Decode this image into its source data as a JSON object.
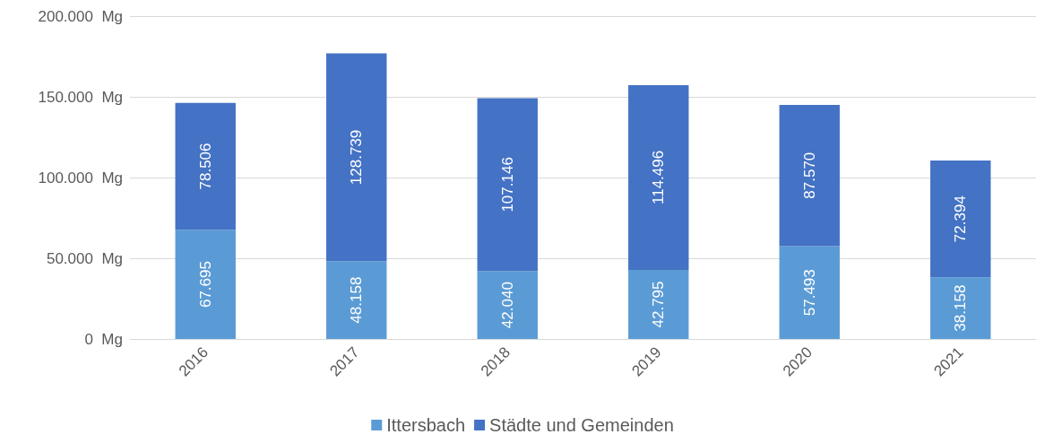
{
  "chart_data": {
    "type": "bar",
    "stacked": true,
    "categories": [
      "2016",
      "2017",
      "2018",
      "2019",
      "2020",
      "2021"
    ],
    "series": [
      {
        "name": "Ittersbach",
        "color": "#5b9bd5",
        "values": [
          67695,
          48158,
          42040,
          42795,
          57493,
          38158
        ],
        "value_labels": [
          "67.695",
          "48.158",
          "42.040",
          "42.795",
          "57.493",
          "38.158"
        ]
      },
      {
        "name": "Städte und Gemeinden",
        "color": "#4472c4",
        "values": [
          78506,
          128739,
          107146,
          114496,
          87570,
          72394
        ],
        "value_labels": [
          "78.506",
          "128.739",
          "107.146",
          "114.496",
          "87.570",
          "72.394"
        ]
      }
    ],
    "ylim": [
      0,
      200000
    ],
    "yticks": [
      {
        "value": 0,
        "label": "0  Mg"
      },
      {
        "value": 50000,
        "label": "50.000  Mg"
      },
      {
        "value": 100000,
        "label": "100.000  Mg"
      },
      {
        "value": 150000,
        "label": "150.000  Mg"
      },
      {
        "value": 200000,
        "label": "200.000  Mg"
      }
    ],
    "grid": "y",
    "legend": "bottom"
  }
}
